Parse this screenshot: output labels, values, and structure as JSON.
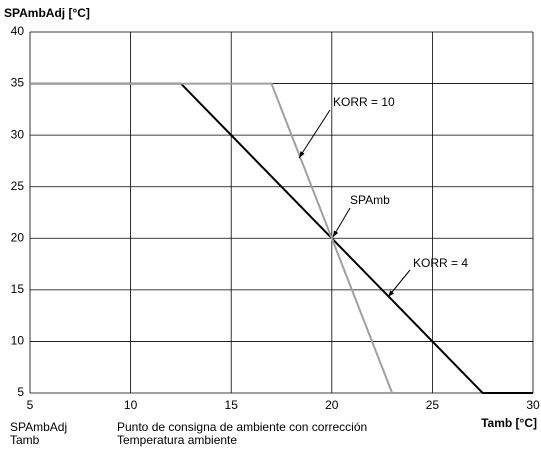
{
  "chart_data": {
    "type": "line",
    "y_label": "SPAmbAdj [°C]",
    "x_label": "Tamb [°C]",
    "xlim": [
      5,
      30
    ],
    "xticks": [
      5,
      10,
      15,
      20,
      25,
      30
    ],
    "ylim": [
      5,
      40
    ],
    "yticks": [
      5,
      10,
      15,
      20,
      25,
      30,
      35,
      40
    ],
    "grid": true,
    "series": [
      {
        "name": "KORR = 4",
        "color": "#000000",
        "x": [
          5,
          12.5,
          27.5,
          30
        ],
        "values": [
          35,
          35,
          5,
          5
        ]
      },
      {
        "name": "KORR = 10",
        "color": "#a0a0a0",
        "x": [
          5,
          17,
          23
        ],
        "values": [
          35,
          35,
          5
        ]
      }
    ],
    "annotations": [
      {
        "text": "SPAmb",
        "x": 20,
        "y": 20
      }
    ],
    "notes": [
      {
        "term": "SPAmbAdj",
        "description": "Punto de consigna de ambiente con corrección"
      },
      {
        "term": "Tamb",
        "description": "Temperatura ambiente"
      }
    ]
  }
}
